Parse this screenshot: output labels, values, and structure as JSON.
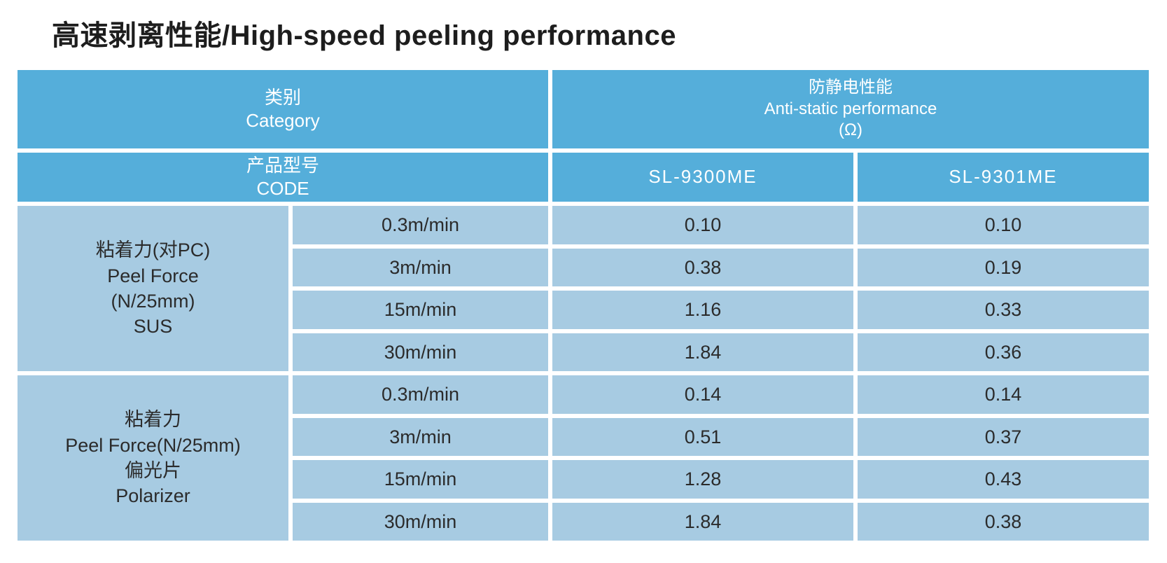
{
  "title": "高速剥离性能/High-speed peeling performance",
  "colors": {
    "header_blue": "#55AEDA",
    "cell_light_blue": "#A7CBE2",
    "header_text": "#ffffff",
    "body_text": "#2b2b2b",
    "divider": "#ffffff"
  },
  "table": {
    "header": {
      "category_zh": "类别",
      "category_en": "Category",
      "antistatic_zh": "防静电性能",
      "antistatic_en": "Anti-static performance",
      "antistatic_unit": "(Ω)",
      "code_zh": "产品型号",
      "code_en": "CODE",
      "product_codes": [
        "SL-9300ME",
        "SL-9301ME"
      ]
    },
    "groups": [
      {
        "label_lines": [
          "粘着力(对PC)",
          "Peel Force",
          "(N/25mm)",
          "SUS"
        ],
        "rows": [
          {
            "speed": "0.3m/min",
            "sl9300": "0.10",
            "sl9301": "0.10"
          },
          {
            "speed": "3m/min",
            "sl9300": "0.38",
            "sl9301": "0.19"
          },
          {
            "speed": "15m/min",
            "sl9300": "1.16",
            "sl9301": "0.33"
          },
          {
            "speed": "30m/min",
            "sl9300": "1.84",
            "sl9301": "0.36"
          }
        ]
      },
      {
        "label_lines": [
          "粘着力",
          "Peel Force(N/25mm)",
          "偏光片",
          "Polarizer"
        ],
        "rows": [
          {
            "speed": "0.3m/min",
            "sl9300": "0.14",
            "sl9301": "0.14"
          },
          {
            "speed": "3m/min",
            "sl9300": "0.51",
            "sl9301": "0.37"
          },
          {
            "speed": "15m/min",
            "sl9300": "1.28",
            "sl9301": "0.43"
          },
          {
            "speed": "30m/min",
            "sl9300": "1.84",
            "sl9301": "0.38"
          }
        ]
      }
    ]
  }
}
